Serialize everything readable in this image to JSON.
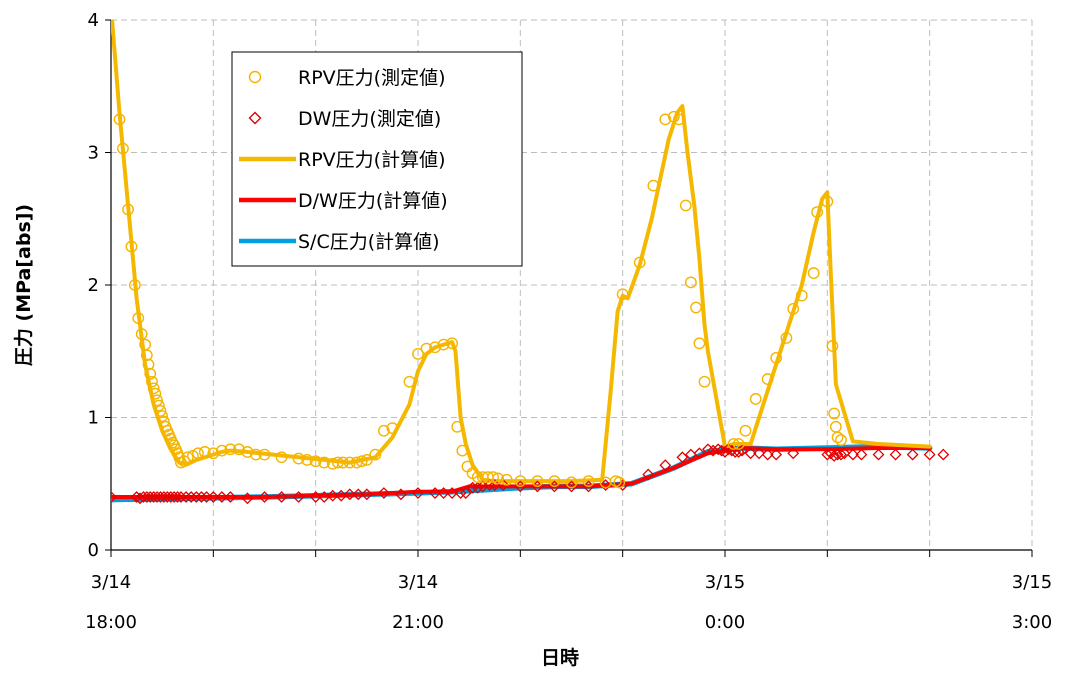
{
  "chart_data": {
    "type": "line",
    "xlabel": "日時",
    "ylabel": "圧力 (MPa[abs])",
    "xlim": [
      "3/14 18:00",
      "3/15 3:00"
    ],
    "ylim": [
      0,
      4
    ],
    "y_ticks": [
      "0",
      "1",
      "2",
      "3",
      "4"
    ],
    "x_ticks": [
      {
        "date": "3/14",
        "time": "18:00"
      },
      {
        "date": "3/14",
        "time": "21:00"
      },
      {
        "date": "3/15",
        "time": "0:00"
      },
      {
        "date": "3/15",
        "time": "3:00"
      }
    ],
    "grid": true,
    "legend_position": "top-left",
    "colors": {
      "rpv_measured": "#F5B400",
      "dw_measured": "#E00000",
      "rpv_calc": "#F5B800",
      "dw_calc": "#FF0000",
      "sc_calc": "#00A0E0"
    },
    "legend": [
      {
        "label": "RPV圧力(測定値)",
        "marker": "circle",
        "color": "#F5B400"
      },
      {
        "label": "DW圧力(測定値)",
        "marker": "diamond",
        "color": "#E00000"
      },
      {
        "label": "RPV圧力(計算値)",
        "marker": "line",
        "color": "#F5B800"
      },
      {
        "label": "D/W圧力(計算値)",
        "marker": "line",
        "color": "#FF0000"
      },
      {
        "label": "S/C圧力(計算値)",
        "marker": "line",
        "color": "#00A0E0"
      }
    ],
    "series": [
      {
        "name": "S/C圧力(計算値)",
        "style": "line",
        "x": [
          "3/14 18:00",
          "3/14 19:30",
          "3/14 20:30",
          "3/14 21:20",
          "3/14 22:00",
          "3/14 22:20",
          "3/14 22:40",
          "3/14 23:05",
          "3/14 23:30",
          "3/14 23:50",
          "3/15 0:10",
          "3/15 0:30",
          "3/15 1:00",
          "3/15 1:30",
          "3/15 2:00"
        ],
        "y": [
          0.38,
          0.4,
          0.42,
          0.44,
          0.47,
          0.48,
          0.48,
          0.5,
          0.62,
          0.74,
          0.77,
          0.76,
          0.77,
          0.78,
          0.77
        ]
      },
      {
        "name": "D/W圧力(計算値)",
        "style": "line",
        "x": [
          "3/14 18:00",
          "3/14 19:30",
          "3/14 20:30",
          "3/14 21:00",
          "3/14 21:20",
          "3/14 21:30",
          "3/14 22:00",
          "3/14 22:20",
          "3/14 22:40",
          "3/14 23:05",
          "3/14 23:30",
          "3/14 23:50",
          "3/15 0:10",
          "3/15 0:30",
          "3/15 1:00",
          "3/15 1:30",
          "3/15 2:00"
        ],
        "y": [
          0.4,
          0.4,
          0.42,
          0.44,
          0.44,
          0.48,
          0.48,
          0.48,
          0.48,
          0.5,
          0.62,
          0.73,
          0.77,
          0.76,
          0.76,
          0.77,
          0.77
        ]
      },
      {
        "name": "RPV圧力(計算値)",
        "style": "line",
        "x": [
          "3/14 18:00",
          "3/14 18:05",
          "3/14 18:10",
          "3/14 18:15",
          "3/14 18:20",
          "3/14 18:25",
          "3/14 18:30",
          "3/14 18:35",
          "3/14 18:40",
          "3/14 18:45",
          "3/14 18:50",
          "3/14 18:55",
          "3/14 19:00",
          "3/14 19:05",
          "3/14 19:10",
          "3/14 19:20",
          "3/14 19:35",
          "3/14 19:50",
          "3/14 20:05",
          "3/14 20:20",
          "3/14 20:35",
          "3/14 20:45",
          "3/14 20:55",
          "3/14 21:00",
          "3/14 21:05",
          "3/14 21:10",
          "3/14 21:15",
          "3/14 21:20",
          "3/14 21:22",
          "3/14 21:25",
          "3/14 21:28",
          "3/14 21:32",
          "3/14 21:38",
          "3/14 21:45",
          "3/14 22:00",
          "3/14 22:30",
          "3/14 22:48",
          "3/14 22:53",
          "3/14 22:57",
          "3/14 23:00",
          "3/14 23:03",
          "3/14 23:10",
          "3/14 23:17",
          "3/14 23:22",
          "3/14 23:27",
          "3/14 23:32",
          "3/14 23:35",
          "3/14 23:38",
          "3/14 23:42",
          "3/14 23:45",
          "3/14 23:48",
          "3/14 23:50",
          "3/15 0:00",
          "3/15 0:05",
          "3/15 0:15",
          "3/15 0:25",
          "3/15 0:35",
          "3/15 0:45",
          "3/15 0:52",
          "3/15 0:55",
          "3/15 0:57",
          "3/15 1:00",
          "3/15 1:02",
          "3/15 1:05",
          "3/15 1:15",
          "3/15 1:30",
          "3/15 2:00"
        ],
        "y": [
          4.1,
          3.3,
          2.6,
          1.9,
          1.4,
          1.1,
          0.9,
          0.76,
          0.66,
          0.65,
          0.68,
          0.7,
          0.72,
          0.74,
          0.75,
          0.74,
          0.72,
          0.7,
          0.68,
          0.66,
          0.7,
          0.85,
          1.1,
          1.35,
          1.48,
          1.53,
          1.55,
          1.57,
          1.5,
          1.0,
          0.8,
          0.64,
          0.53,
          0.52,
          0.52,
          0.52,
          0.53,
          1.2,
          1.8,
          1.92,
          1.9,
          2.15,
          2.5,
          2.8,
          3.1,
          3.3,
          3.35,
          3.0,
          2.6,
          2.2,
          1.7,
          1.5,
          0.78,
          0.8,
          0.8,
          1.2,
          1.6,
          2.0,
          2.4,
          2.55,
          2.65,
          2.7,
          2.1,
          1.25,
          0.82,
          0.8,
          0.78
        ]
      },
      {
        "name": "DW圧力(測定値)",
        "style": "diamond",
        "x": [
          "3/14 18:00",
          "3/14 18:15",
          "3/14 18:17",
          "3/14 18:19",
          "3/14 18:21",
          "3/14 18:23",
          "3/14 18:25",
          "3/14 18:27",
          "3/14 18:29",
          "3/14 18:31",
          "3/14 18:33",
          "3/14 18:35",
          "3/14 18:37",
          "3/14 18:39",
          "3/14 18:41",
          "3/14 18:44",
          "3/14 18:47",
          "3/14 18:50",
          "3/14 18:53",
          "3/14 18:56",
          "3/14 19:00",
          "3/14 19:05",
          "3/14 19:10",
          "3/14 19:20",
          "3/14 19:30",
          "3/14 19:40",
          "3/14 19:50",
          "3/14 20:00",
          "3/14 20:05",
          "3/14 20:10",
          "3/14 20:15",
          "3/14 20:20",
          "3/14 20:25",
          "3/14 20:30",
          "3/14 20:40",
          "3/14 20:50",
          "3/14 21:00",
          "3/14 21:10",
          "3/14 21:15",
          "3/14 21:20",
          "3/14 21:25",
          "3/14 21:28",
          "3/14 21:32",
          "3/14 21:35",
          "3/14 21:38",
          "3/14 21:42",
          "3/14 21:45",
          "3/14 21:50",
          "3/14 22:00",
          "3/14 22:10",
          "3/14 22:20",
          "3/14 22:30",
          "3/14 22:40",
          "3/14 22:50",
          "3/14 23:00",
          "3/14 23:15",
          "3/14 23:25",
          "3/14 23:35",
          "3/14 23:40",
          "3/14 23:45",
          "3/14 23:50",
          "3/14 23:53",
          "3/14 23:56",
          "3/14 23:58",
          "3/15 0:00",
          "3/15 0:02",
          "3/15 0:04",
          "3/15 0:06",
          "3/15 0:08",
          "3/15 0:10",
          "3/15 0:15",
          "3/15 0:20",
          "3/15 0:25",
          "3/15 0:30",
          "3/15 0:40",
          "3/15 1:00",
          "3/15 1:02",
          "3/15 1:04",
          "3/15 1:06",
          "3/15 1:08",
          "3/15 1:10",
          "3/15 1:15",
          "3/15 1:20",
          "3/15 1:30",
          "3/15 1:40",
          "3/15 1:50",
          "3/15 2:00",
          "3/15 2:08"
        ],
        "y": [
          0.4,
          0.4,
          0.39,
          0.4,
          0.4,
          0.4,
          0.4,
          0.4,
          0.4,
          0.4,
          0.4,
          0.4,
          0.4,
          0.4,
          0.4,
          0.4,
          0.4,
          0.4,
          0.4,
          0.4,
          0.4,
          0.4,
          0.4,
          0.39,
          0.4,
          0.4,
          0.4,
          0.4,
          0.4,
          0.41,
          0.41,
          0.42,
          0.42,
          0.42,
          0.43,
          0.42,
          0.43,
          0.43,
          0.43,
          0.43,
          0.43,
          0.43,
          0.47,
          0.47,
          0.48,
          0.49,
          0.49,
          0.49,
          0.48,
          0.48,
          0.48,
          0.48,
          0.48,
          0.49,
          0.49,
          0.57,
          0.64,
          0.7,
          0.72,
          0.73,
          0.76,
          0.75,
          0.76,
          0.75,
          0.74,
          0.76,
          0.75,
          0.74,
          0.74,
          0.75,
          0.73,
          0.73,
          0.72,
          0.72,
          0.73,
          0.72,
          0.73,
          0.71,
          0.72,
          0.72,
          0.73,
          0.72,
          0.72,
          0.72,
          0.72,
          0.72,
          0.72,
          0.72
        ]
      },
      {
        "name": "RPV圧力(測定値)",
        "style": "circle",
        "x": [
          "3/14 18:05",
          "3/14 18:07",
          "3/14 18:10",
          "3/14 18:12",
          "3/14 18:14",
          "3/14 18:16",
          "3/14 18:18",
          "3/14 18:20",
          "3/14 18:21",
          "3/14 18:22",
          "3/14 18:23",
          "3/14 18:24",
          "3/14 18:25",
          "3/14 18:26",
          "3/14 18:27",
          "3/14 18:28",
          "3/14 18:29",
          "3/14 18:30",
          "3/14 18:31",
          "3/14 18:32",
          "3/14 18:33",
          "3/14 18:34",
          "3/14 18:35",
          "3/14 18:36",
          "3/14 18:37",
          "3/14 18:38",
          "3/14 18:39",
          "3/14 18:40",
          "3/14 18:41",
          "3/14 18:43",
          "3/14 18:45",
          "3/14 18:48",
          "3/14 18:51",
          "3/14 18:55",
          "3/14 19:00",
          "3/14 19:05",
          "3/14 19:10",
          "3/14 19:15",
          "3/14 19:20",
          "3/14 19:25",
          "3/14 19:30",
          "3/14 19:40",
          "3/14 19:50",
          "3/14 19:55",
          "3/14 20:00",
          "3/14 20:05",
          "3/14 20:10",
          "3/14 20:13",
          "3/14 20:16",
          "3/14 20:20",
          "3/14 20:24",
          "3/14 20:27",
          "3/14 20:30",
          "3/14 20:35",
          "3/14 20:40",
          "3/14 20:45",
          "3/14 20:55",
          "3/14 21:00",
          "3/14 21:05",
          "3/14 21:10",
          "3/14 21:15",
          "3/14 21:20",
          "3/14 21:23",
          "3/14 21:26",
          "3/14 21:29",
          "3/14 21:32",
          "3/14 21:35",
          "3/14 21:38",
          "3/14 21:41",
          "3/14 21:44",
          "3/14 21:47",
          "3/14 21:52",
          "3/14 22:00",
          "3/14 22:10",
          "3/14 22:20",
          "3/14 22:30",
          "3/14 22:40",
          "3/14 22:50",
          "3/14 22:56",
          "3/14 22:58",
          "3/14 23:00",
          "3/14 23:10",
          "3/14 23:18",
          "3/14 23:25",
          "3/14 23:30",
          "3/14 23:33",
          "3/14 23:37",
          "3/14 23:40",
          "3/14 23:43",
          "3/14 23:45",
          "3/14 23:48",
          "3/15 0:05",
          "3/15 0:08",
          "3/15 0:12",
          "3/15 0:18",
          "3/15 0:25",
          "3/15 0:30",
          "3/15 0:36",
          "3/15 0:40",
          "3/15 0:45",
          "3/15 0:52",
          "3/15 0:54",
          "3/15 1:00",
          "3/15 1:03",
          "3/15 1:04",
          "3/15 1:05",
          "3/15 1:06",
          "3/15 1:08"
        ],
        "y": [
          3.25,
          3.03,
          2.57,
          2.29,
          2.0,
          1.75,
          1.63,
          1.55,
          1.47,
          1.4,
          1.33,
          1.27,
          1.22,
          1.18,
          1.13,
          1.09,
          1.05,
          1.01,
          0.97,
          0.93,
          0.9,
          0.87,
          0.84,
          0.81,
          0.79,
          0.76,
          0.73,
          0.7,
          0.66,
          0.67,
          0.7,
          0.71,
          0.73,
          0.74,
          0.73,
          0.75,
          0.76,
          0.76,
          0.74,
          0.72,
          0.72,
          0.7,
          0.69,
          0.68,
          0.67,
          0.66,
          0.65,
          0.66,
          0.66,
          0.66,
          0.66,
          0.67,
          0.68,
          0.72,
          0.9,
          0.92,
          1.27,
          1.48,
          1.52,
          1.53,
          1.55,
          1.56,
          0.93,
          0.75,
          0.63,
          0.58,
          0.55,
          0.55,
          0.55,
          0.55,
          0.54,
          0.53,
          0.52,
          0.52,
          0.52,
          0.51,
          0.52,
          0.51,
          0.52,
          0.51,
          1.93,
          2.17,
          2.75,
          3.25,
          3.27,
          3.25,
          2.6,
          2.02,
          1.83,
          1.56,
          1.27,
          0.8,
          0.8,
          0.9,
          1.14,
          1.29,
          1.45,
          1.6,
          1.82,
          1.92,
          2.09,
          2.55,
          2.63,
          1.54,
          1.03,
          0.93,
          0.85,
          0.83
        ]
      }
    ]
  }
}
